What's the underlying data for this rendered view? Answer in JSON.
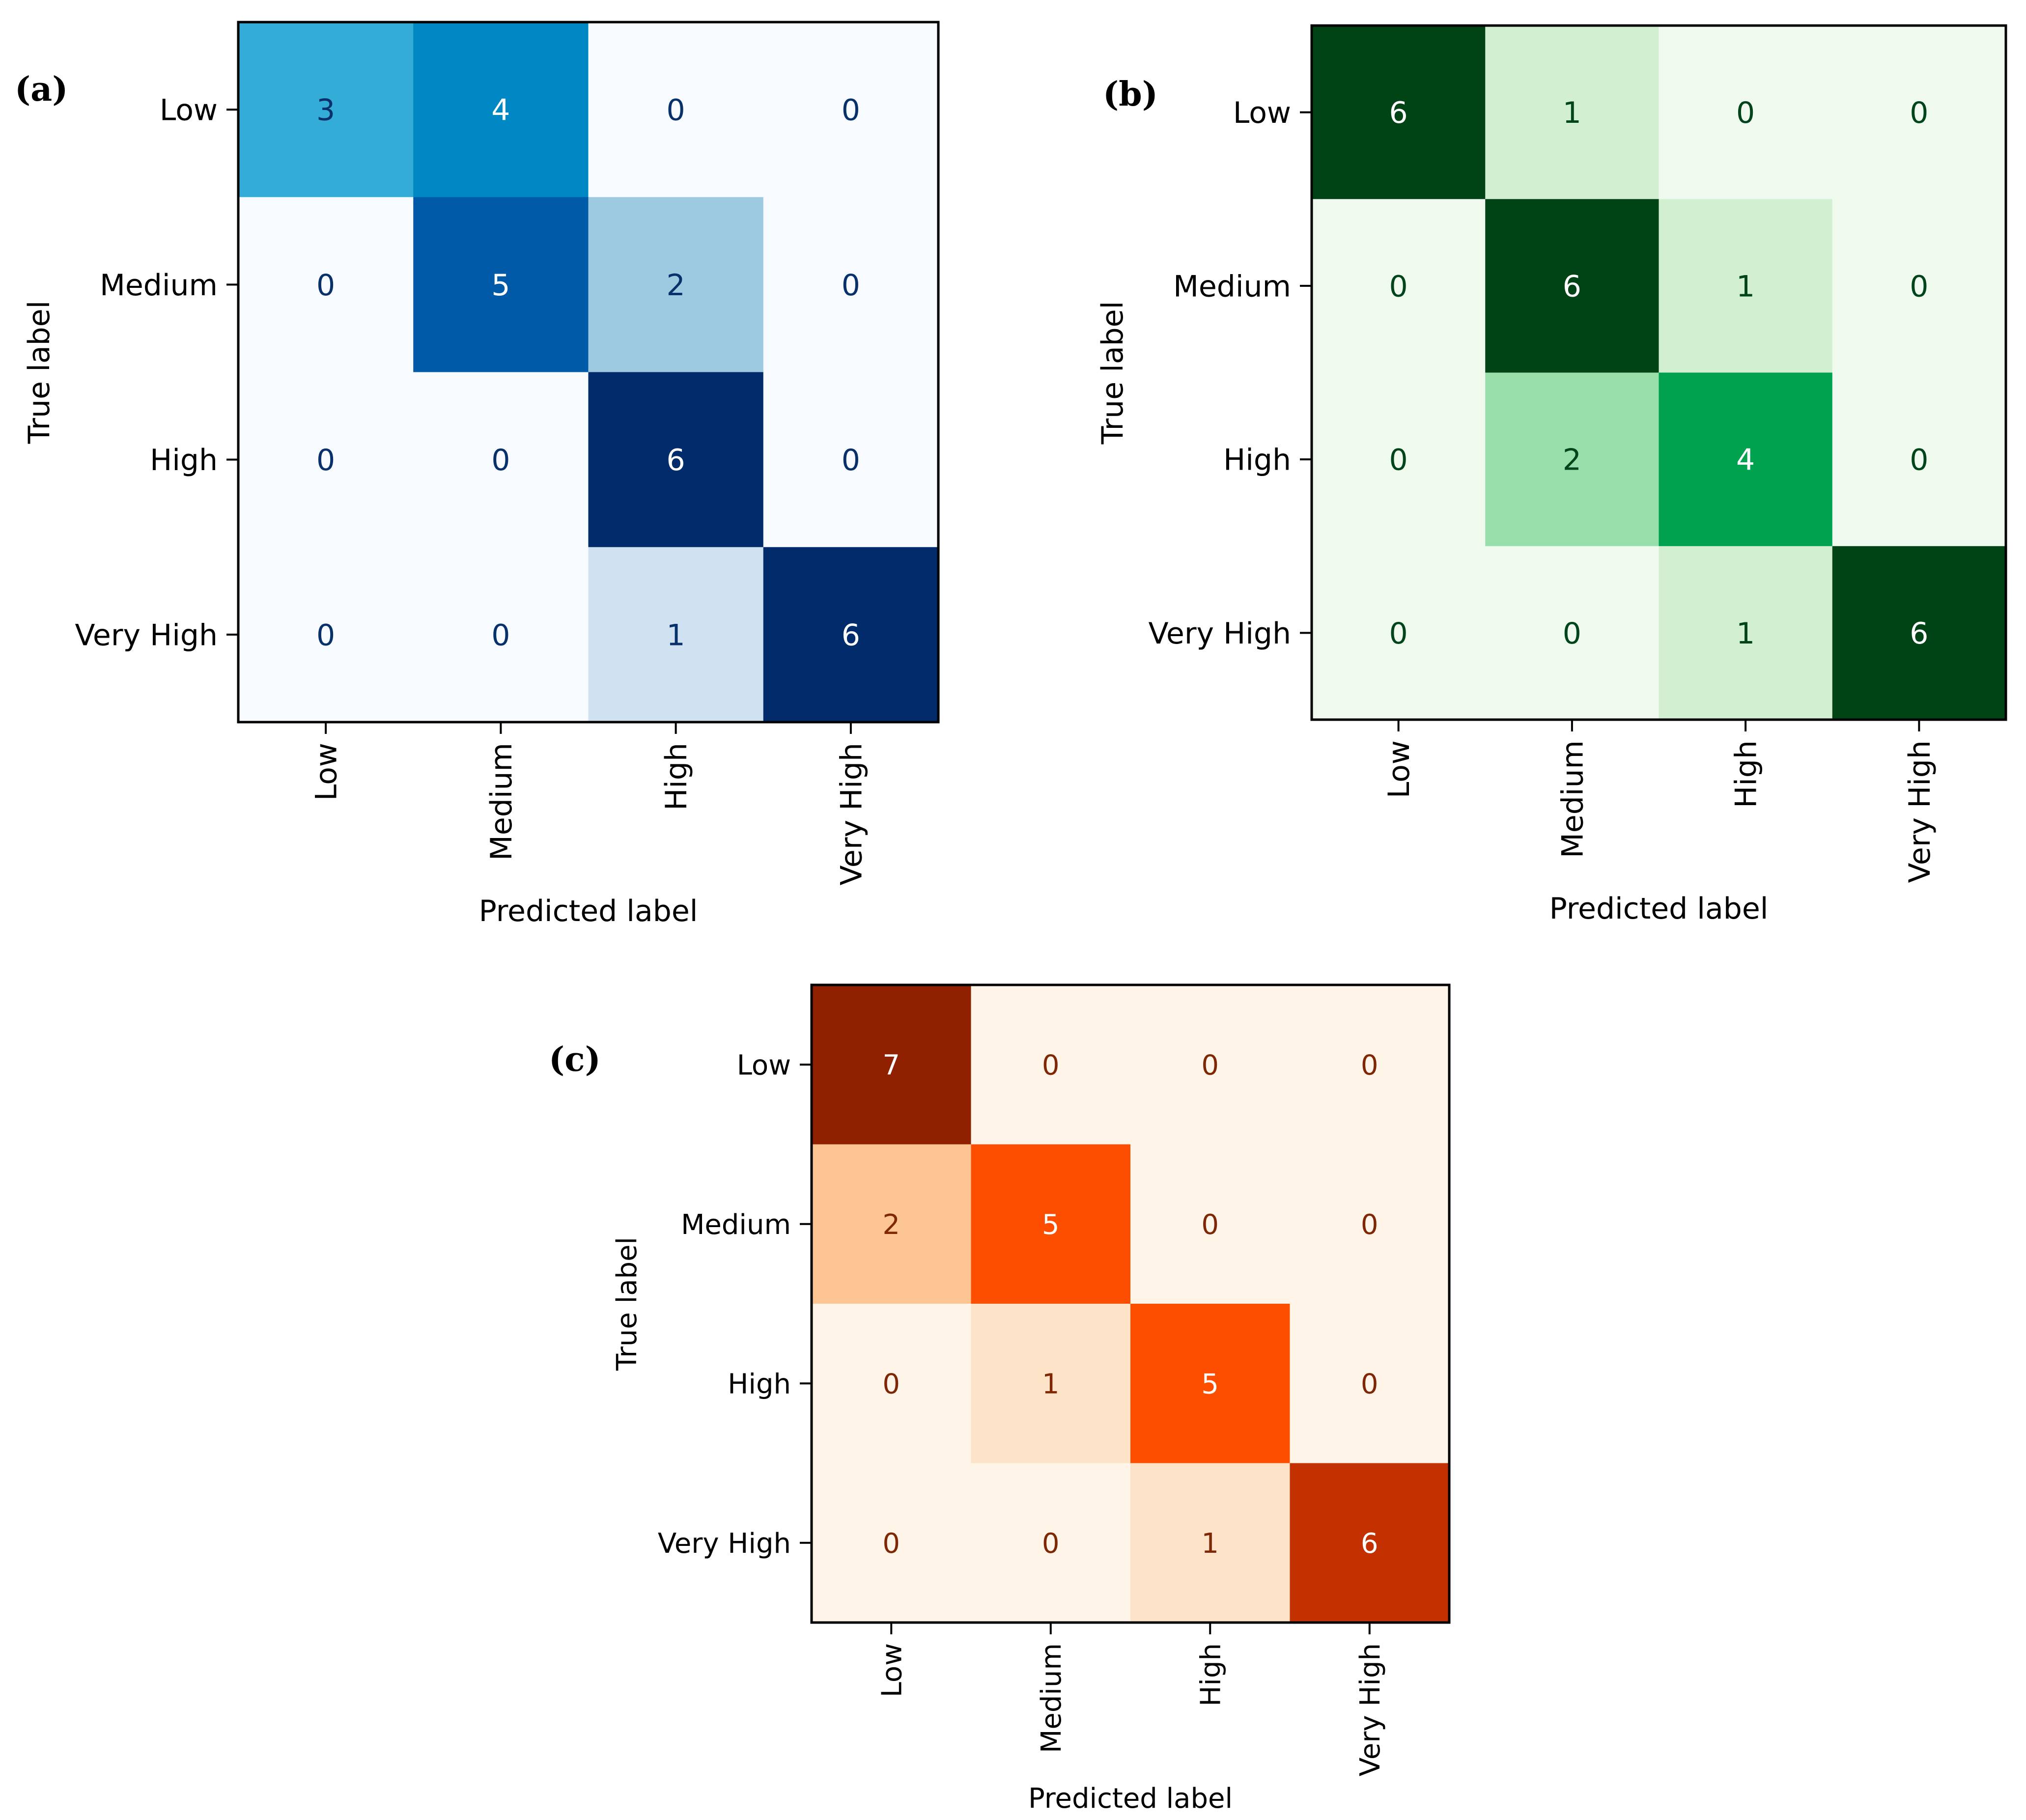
{
  "chart_data": [
    {
      "type": "heatmap",
      "panel_label": "(a)",
      "colormap": "Blues",
      "categories": [
        "Low",
        "Medium",
        "High",
        "Very High"
      ],
      "xlabel": "Predicted label",
      "ylabel": "True label",
      "vmin": 0,
      "vmax": 6,
      "matrix": [
        [
          3,
          4,
          0,
          0
        ],
        [
          0,
          5,
          2,
          0
        ],
        [
          0,
          0,
          6,
          0
        ],
        [
          0,
          0,
          1,
          6
        ]
      ],
      "grid": false
    },
    {
      "type": "heatmap",
      "panel_label": "(b)",
      "colormap": "Greens",
      "categories": [
        "Low",
        "Medium",
        "High",
        "Very High"
      ],
      "xlabel": "Predicted label",
      "ylabel": "True label",
      "vmin": 0,
      "vmax": 6,
      "matrix": [
        [
          6,
          1,
          0,
          0
        ],
        [
          0,
          6,
          1,
          0
        ],
        [
          0,
          2,
          4,
          0
        ],
        [
          0,
          0,
          1,
          6
        ]
      ],
      "grid": false
    },
    {
      "type": "heatmap",
      "panel_label": "(c)",
      "colormap": "Oranges",
      "categories": [
        "Low",
        "Medium",
        "High",
        "Very High"
      ],
      "xlabel": "Predicted label",
      "ylabel": "True label",
      "vmin": 0,
      "vmax": 7,
      "matrix": [
        [
          7,
          0,
          0,
          0
        ],
        [
          2,
          5,
          0,
          0
        ],
        [
          0,
          1,
          5,
          0
        ],
        [
          0,
          0,
          1,
          6
        ]
      ],
      "grid": false
    }
  ],
  "colormaps": {
    "Blues": [
      "#f7fbff",
      "#d0e1f2",
      "#9ecae1",
      "#33acd8",
      "#0088c4",
      "#005aa8",
      "#012b6a"
    ],
    "Greens": [
      "#f0f9ee",
      "#d3efd2",
      "#98deab",
      "#00a24f",
      "#00a24f",
      "#004315",
      "#004315"
    ],
    "Oranges": [
      "#fff4e8",
      "#fde3c8",
      "#fdc593",
      "#fdc593",
      "#fd8d3c",
      "#fd4e00",
      "#c43100",
      "#8f2100"
    ]
  },
  "text_colors": {
    "Blues": {
      "dark": "#08306b",
      "light": "#ffffff"
    },
    "Greens": {
      "dark": "#00441b",
      "light": "#ffffff"
    },
    "Oranges": {
      "dark": "#7f2704",
      "light": "#ffffff"
    }
  }
}
